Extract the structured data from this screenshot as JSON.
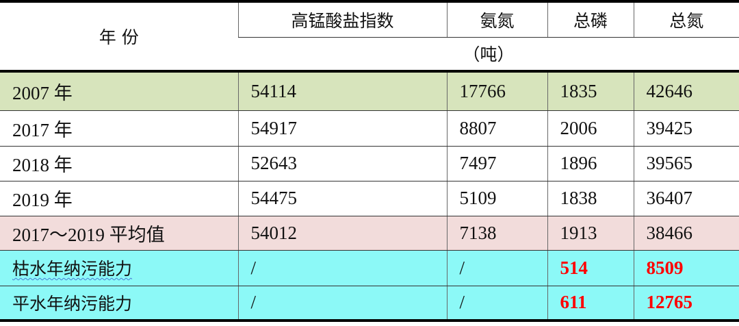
{
  "header": {
    "year_label": "年 份",
    "columns": [
      "高锰酸盐指数",
      "氨氮",
      "总磷",
      "总氮"
    ],
    "unit": "（吨）"
  },
  "rows": [
    {
      "label": "2007 年",
      "values": [
        "54114",
        "17766",
        "1835",
        "42646"
      ],
      "style": "green"
    },
    {
      "label": "2017 年",
      "values": [
        "54917",
        "8807",
        "2006",
        "39425"
      ]
    },
    {
      "label": "2018 年",
      "values": [
        "52643",
        "7497",
        "1896",
        "39565"
      ]
    },
    {
      "label": "2019 年",
      "values": [
        "54475",
        "5109",
        "1838",
        "36407"
      ]
    },
    {
      "label": "2017～2019 平均值",
      "values": [
        "54012",
        "7138",
        "1913",
        "38466"
      ],
      "style": "pink"
    },
    {
      "label": "枯水年纳污能力",
      "values": [
        "/",
        "/",
        "514",
        "8509"
      ],
      "style": "cyan"
    },
    {
      "label": "平水年纳污能力",
      "values": [
        "/",
        "/",
        "611",
        "12765"
      ],
      "style": "cyan"
    }
  ],
  "colors": {
    "green": "#d7e4bc",
    "pink": "#f2dcdb",
    "cyan": "#8cf9f7",
    "highlight_text": "#ff0000"
  }
}
